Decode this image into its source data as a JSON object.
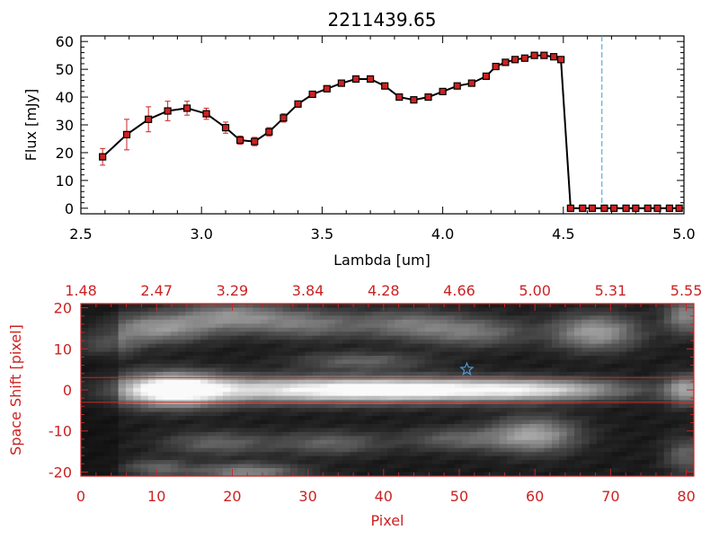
{
  "chart_data": [
    {
      "type": "line",
      "title": "2211439.65",
      "xlabel": "Lambda [um]",
      "ylabel": "Flux [mJy]",
      "xlim": [
        2.5,
        5.0
      ],
      "ylim": [
        -2,
        62
      ],
      "xticks": [
        "2.5",
        "3.0",
        "3.5",
        "4.0",
        "4.5",
        "5.0"
      ],
      "yticks": [
        "0",
        "10",
        "20",
        "30",
        "40",
        "50",
        "60"
      ],
      "vline_x": 4.66,
      "colors": {
        "line": "#000000",
        "marker": "#cc2222",
        "errorbar": "#cc2222",
        "vline": "#3fa0c8"
      },
      "series": [
        {
          "x": [
            2.59,
            2.69,
            2.78,
            2.86,
            2.94,
            3.02,
            3.1,
            3.16,
            3.22,
            3.28,
            3.34,
            3.4,
            3.46,
            3.52,
            3.58,
            3.64,
            3.7,
            3.76,
            3.82,
            3.88,
            3.94,
            4.0,
            4.06,
            4.12,
            4.18,
            4.22,
            4.26,
            4.3,
            4.34,
            4.38,
            4.42,
            4.46,
            4.49,
            4.53,
            4.58,
            4.62,
            4.67,
            4.71,
            4.76,
            4.8,
            4.85,
            4.89,
            4.94,
            4.98
          ],
          "y": [
            18.5,
            26.5,
            32,
            35,
            36,
            34,
            29,
            24.5,
            24,
            27.5,
            32.5,
            37.5,
            41,
            43,
            45,
            46.5,
            46.5,
            44,
            40,
            39,
            40,
            42,
            44,
            45,
            47.5,
            51,
            52.5,
            53.5,
            54,
            55,
            55,
            54.5,
            53.5,
            0,
            0,
            0,
            0,
            0,
            0,
            0,
            0,
            0,
            0,
            0
          ],
          "err": [
            3,
            5.5,
            4.5,
            3.5,
            2.5,
            2,
            2,
            1.5,
            1.5,
            1.5,
            1.5,
            1,
            1,
            1,
            1,
            1,
            1,
            1,
            1,
            1,
            1,
            1,
            1,
            1,
            1,
            1,
            1,
            1,
            1,
            1,
            1,
            1,
            1,
            0.3,
            0.3,
            0.3,
            0.3,
            0.3,
            0.3,
            0.3,
            0.3,
            0.3,
            0.3,
            0.3
          ]
        }
      ]
    },
    {
      "type": "heatmap",
      "xlabel": "Pixel",
      "ylabel": "Space Shift [pixel]",
      "xlim": [
        0,
        81
      ],
      "ylim": [
        -21,
        21
      ],
      "xticks": [
        "0",
        "10",
        "20",
        "30",
        "40",
        "50",
        "60",
        "70",
        "80"
      ],
      "yticks": [
        "-20",
        "-10",
        "0",
        "10",
        "20"
      ],
      "top_axis_labels": [
        "1.48",
        "2.47",
        "3.29",
        "3.84",
        "4.28",
        "4.66",
        "5.00",
        "5.31",
        "5.55"
      ],
      "extraction_bounds": [
        -3,
        3
      ],
      "marker": {
        "symbol": "star",
        "x": 51,
        "y": 5
      },
      "colors": {
        "axes": "#cc2222",
        "star": "#4f97d8"
      },
      "blobs": [
        {
          "x": 12,
          "y": 0,
          "sx": 5,
          "sy": 2.8,
          "amp": 0.95
        },
        {
          "x": 30,
          "y": 0,
          "sx": 14,
          "sy": 2.2,
          "amp": 0.75
        },
        {
          "x": 48,
          "y": 0,
          "sx": 12,
          "sy": 2.0,
          "amp": 0.6
        },
        {
          "x": 62,
          "y": 0,
          "sx": 8,
          "sy": 1.8,
          "amp": 0.45
        },
        {
          "x": 80,
          "y": 0,
          "sx": 2,
          "sy": 2.5,
          "amp": 0.55
        },
        {
          "x": 10,
          "y": 15,
          "sx": 5,
          "sy": 2.5,
          "amp": 0.5
        },
        {
          "x": 20,
          "y": 18,
          "sx": 5,
          "sy": 2.5,
          "amp": 0.45
        },
        {
          "x": 30,
          "y": 16,
          "sx": 5,
          "sy": 2.5,
          "amp": 0.35
        },
        {
          "x": 43,
          "y": 16,
          "sx": 5,
          "sy": 2.5,
          "amp": 0.35
        },
        {
          "x": 52,
          "y": 14,
          "sx": 5,
          "sy": 2.5,
          "amp": 0.35
        },
        {
          "x": 68,
          "y": 14,
          "sx": 4,
          "sy": 3,
          "amp": 0.55
        },
        {
          "x": 80,
          "y": 18,
          "sx": 2,
          "sy": 3,
          "amp": 0.45
        },
        {
          "x": 3,
          "y": 11,
          "sx": 3,
          "sy": 2,
          "amp": 0.35
        },
        {
          "x": 37,
          "y": 7,
          "sx": 6,
          "sy": 1.5,
          "amp": 0.3
        },
        {
          "x": 60,
          "y": -11,
          "sx": 4,
          "sy": 3,
          "amp": 0.55
        },
        {
          "x": 18,
          "y": -13,
          "sx": 5,
          "sy": 2,
          "amp": 0.3
        },
        {
          "x": 33,
          "y": -13,
          "sx": 5,
          "sy": 2,
          "amp": 0.3
        },
        {
          "x": 50,
          "y": -12,
          "sx": 5,
          "sy": 2,
          "amp": 0.3
        },
        {
          "x": 22,
          "y": -20,
          "sx": 5,
          "sy": 1.5,
          "amp": 0.45
        },
        {
          "x": 10,
          "y": -19,
          "sx": 3,
          "sy": 1.5,
          "amp": 0.3
        },
        {
          "x": 80,
          "y": -16,
          "sx": 2,
          "sy": 3,
          "amp": 0.3
        }
      ]
    }
  ]
}
